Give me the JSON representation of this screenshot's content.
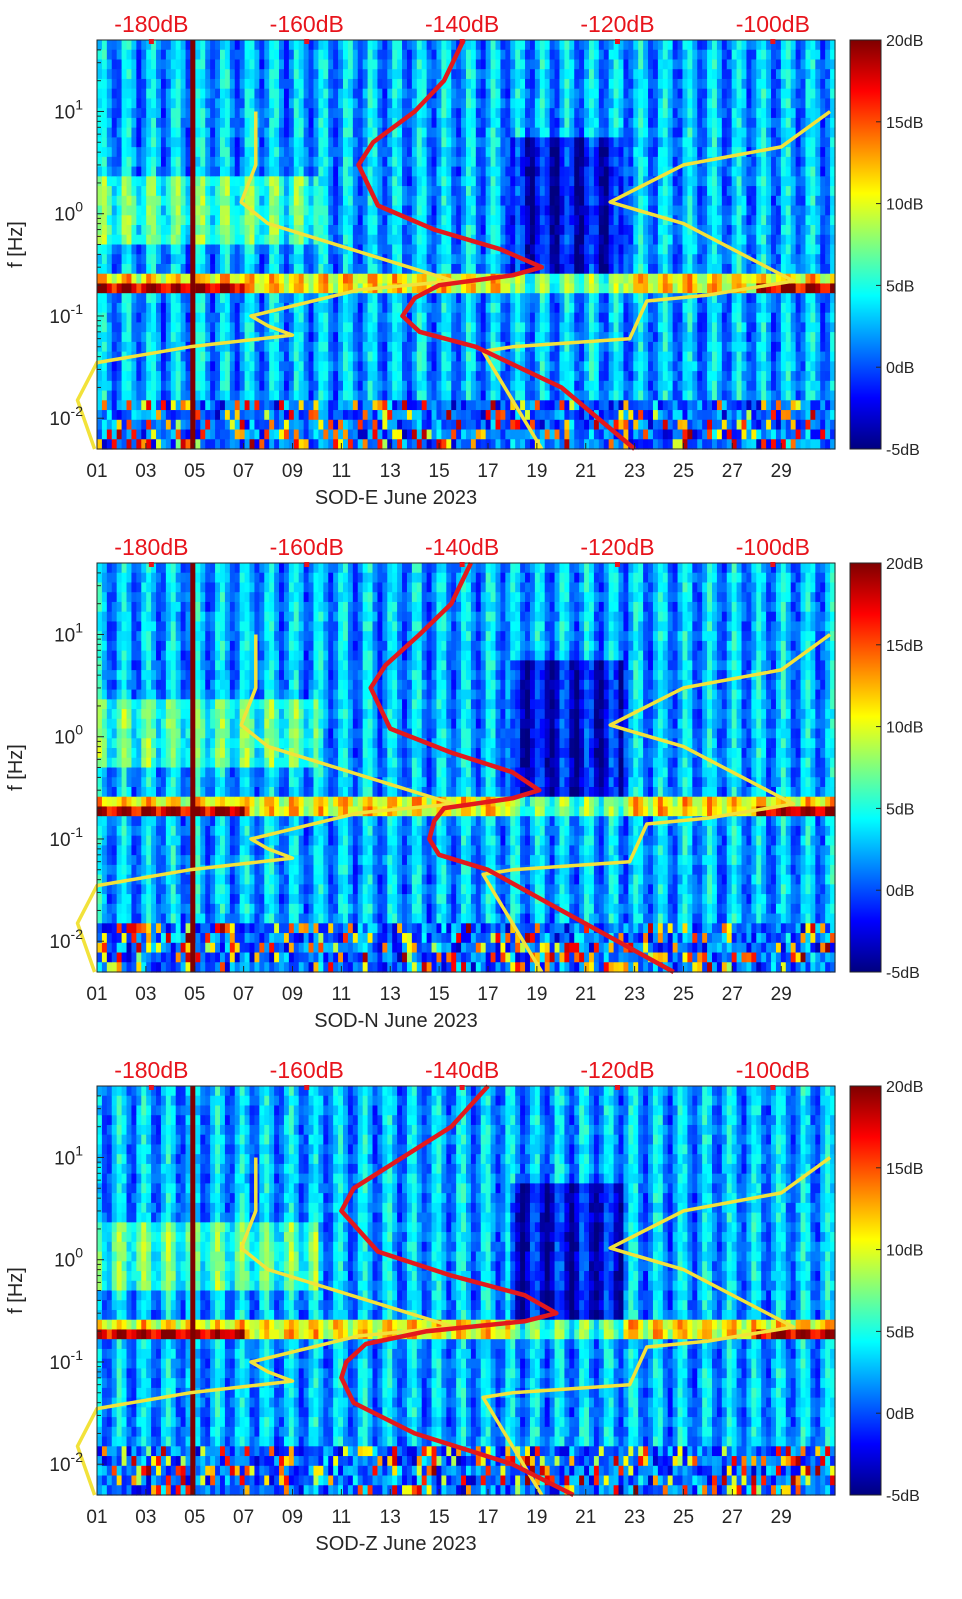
{
  "colors": {
    "reference_curve": "#f2e23a",
    "psd_curve": "#e3191c",
    "top_labels": "#e8141c",
    "colormap": [
      "#00007f",
      "#0000ff",
      "#007fff",
      "#00ffff",
      "#7fff7f",
      "#ffff00",
      "#ff7f00",
      "#ff0000",
      "#7f0000"
    ]
  },
  "chart_data": [
    {
      "type": "heatmap",
      "title": "SOD-E June 2023",
      "xlabel": "SOD-E June 2023",
      "ylabel": "f [Hz]",
      "x_ticks": [
        "01",
        "03",
        "05",
        "07",
        "09",
        "11",
        "13",
        "15",
        "17",
        "19",
        "21",
        "23",
        "25",
        "27",
        "29"
      ],
      "y_ticks": [
        {
          "value": 0.01,
          "base": "10",
          "exp": "-2"
        },
        {
          "value": 0.1,
          "base": "10",
          "exp": "-1"
        },
        {
          "value": 1,
          "base": "10",
          "exp": "0"
        },
        {
          "value": 10,
          "base": "10",
          "exp": "1"
        }
      ],
      "ylim": [
        0.005,
        50
      ],
      "top_axis_ticks": [
        "-180dB",
        "-160dB",
        "-140dB",
        "-120dB",
        "-100dB"
      ],
      "top_axis_range": [
        -187,
        -92
      ],
      "colorbar": {
        "ticks": [
          "20dB",
          "15dB",
          "10dB",
          "5dB",
          "0dB",
          "-5dB"
        ],
        "range": [
          -5,
          20
        ]
      },
      "series": [
        {
          "name": "reference_yellow",
          "points": [
            [
              7.5,
              10
            ],
            [
              7.5,
              3
            ],
            [
              6.9,
              1.3
            ],
            [
              8,
              0.8
            ],
            [
              15.6,
              0.22
            ],
            [
              11.7,
              0.18
            ],
            [
              7.3,
              0.1
            ],
            [
              8,
              0.08
            ],
            [
              9,
              0.065
            ],
            [
              4.8,
              0.05
            ],
            [
              1,
              0.035
            ],
            [
              0.2,
              0.015
            ],
            [
              0.9,
              0.005
            ]
          ]
        },
        {
          "name": "reference_yellow_right",
          "points": [
            [
              31,
              10
            ],
            [
              29,
              4.5
            ],
            [
              25,
              3
            ],
            [
              22,
              1.3
            ],
            [
              25,
              0.8
            ],
            [
              29.5,
              0.22
            ],
            [
              26,
              0.16
            ],
            [
              23.5,
              0.14
            ],
            [
              22.8,
              0.06
            ],
            [
              18,
              0.05
            ],
            [
              16.8,
              0.045
            ],
            [
              19.2,
              0.005
            ]
          ]
        },
        {
          "name": "psd_red",
          "points": [
            [
              16,
              50
            ],
            [
              15.2,
              20
            ],
            [
              14,
              10
            ],
            [
              12.3,
              5
            ],
            [
              11.7,
              3
            ],
            [
              12.5,
              1.2
            ],
            [
              14.8,
              0.7
            ],
            [
              17.5,
              0.45
            ],
            [
              19.2,
              0.3
            ],
            [
              18,
              0.25
            ],
            [
              15,
              0.2
            ],
            [
              14,
              0.15
            ],
            [
              13.5,
              0.1
            ],
            [
              14.2,
              0.07
            ],
            [
              16.5,
              0.05
            ],
            [
              20,
              0.02
            ],
            [
              23,
              0.005
            ]
          ]
        }
      ]
    },
    {
      "type": "heatmap",
      "title": "SOD-N June 2023",
      "xlabel": "SOD-N June 2023",
      "ylabel": "f [Hz]",
      "x_ticks": [
        "01",
        "03",
        "05",
        "07",
        "09",
        "11",
        "13",
        "15",
        "17",
        "19",
        "21",
        "23",
        "25",
        "27",
        "29"
      ],
      "y_ticks": [
        {
          "value": 0.01,
          "base": "10",
          "exp": "-2"
        },
        {
          "value": 0.1,
          "base": "10",
          "exp": "-1"
        },
        {
          "value": 1,
          "base": "10",
          "exp": "0"
        },
        {
          "value": 10,
          "base": "10",
          "exp": "1"
        }
      ],
      "ylim": [
        0.005,
        50
      ],
      "top_axis_ticks": [
        "-180dB",
        "-160dB",
        "-140dB",
        "-120dB",
        "-100dB"
      ],
      "top_axis_range": [
        -187,
        -92
      ],
      "colorbar": {
        "ticks": [
          "20dB",
          "15dB",
          "10dB",
          "5dB",
          "0dB",
          "-5dB"
        ],
        "range": [
          -5,
          20
        ]
      },
      "series": [
        {
          "name": "reference_yellow",
          "points": [
            [
              7.5,
              10
            ],
            [
              7.5,
              3
            ],
            [
              6.9,
              1.3
            ],
            [
              8,
              0.8
            ],
            [
              15.6,
              0.22
            ],
            [
              11.7,
              0.18
            ],
            [
              7.3,
              0.1
            ],
            [
              8,
              0.08
            ],
            [
              9,
              0.065
            ],
            [
              4.8,
              0.05
            ],
            [
              1,
              0.035
            ],
            [
              0.2,
              0.015
            ],
            [
              0.9,
              0.005
            ]
          ]
        },
        {
          "name": "reference_yellow_right",
          "points": [
            [
              31,
              10
            ],
            [
              29,
              4.5
            ],
            [
              25,
              3
            ],
            [
              22,
              1.3
            ],
            [
              25,
              0.8
            ],
            [
              29.5,
              0.22
            ],
            [
              26,
              0.16
            ],
            [
              23.5,
              0.14
            ],
            [
              22.8,
              0.06
            ],
            [
              18,
              0.05
            ],
            [
              16.8,
              0.045
            ],
            [
              19.2,
              0.005
            ]
          ]
        },
        {
          "name": "psd_red",
          "points": [
            [
              16.3,
              50
            ],
            [
              15.5,
              20
            ],
            [
              14.2,
              10
            ],
            [
              12.8,
              5
            ],
            [
              12.2,
              3
            ],
            [
              13,
              1.2
            ],
            [
              15.5,
              0.7
            ],
            [
              18,
              0.45
            ],
            [
              19.1,
              0.3
            ],
            [
              18,
              0.25
            ],
            [
              15.2,
              0.2
            ],
            [
              14.8,
              0.15
            ],
            [
              14.6,
              0.1
            ],
            [
              15,
              0.07
            ],
            [
              17,
              0.05
            ],
            [
              20,
              0.02
            ],
            [
              24.6,
              0.005
            ]
          ]
        }
      ]
    },
    {
      "type": "heatmap",
      "title": "SOD-Z June 2023",
      "xlabel": "SOD-Z June 2023",
      "ylabel": "f [Hz]",
      "x_ticks": [
        "01",
        "03",
        "05",
        "07",
        "09",
        "11",
        "13",
        "15",
        "17",
        "19",
        "21",
        "23",
        "25",
        "27",
        "29"
      ],
      "y_ticks": [
        {
          "value": 0.01,
          "base": "10",
          "exp": "-2"
        },
        {
          "value": 0.1,
          "base": "10",
          "exp": "-1"
        },
        {
          "value": 1,
          "base": "10",
          "exp": "0"
        },
        {
          "value": 10,
          "base": "10",
          "exp": "1"
        }
      ],
      "ylim": [
        0.005,
        50
      ],
      "top_axis_ticks": [
        "-180dB",
        "-160dB",
        "-140dB",
        "-120dB",
        "-100dB"
      ],
      "top_axis_range": [
        -187,
        -92
      ],
      "colorbar": {
        "ticks": [
          "20dB",
          "15dB",
          "10dB",
          "5dB",
          "0dB",
          "-5dB"
        ],
        "range": [
          -5,
          20
        ]
      },
      "series": [
        {
          "name": "reference_yellow",
          "points": [
            [
              7.5,
              10
            ],
            [
              7.5,
              3
            ],
            [
              6.9,
              1.3
            ],
            [
              8,
              0.8
            ],
            [
              15.6,
              0.22
            ],
            [
              11.7,
              0.18
            ],
            [
              7.3,
              0.1
            ],
            [
              8,
              0.08
            ],
            [
              9,
              0.065
            ],
            [
              4.8,
              0.05
            ],
            [
              1,
              0.035
            ],
            [
              0.2,
              0.015
            ],
            [
              0.9,
              0.005
            ]
          ]
        },
        {
          "name": "reference_yellow_right",
          "points": [
            [
              31,
              10
            ],
            [
              29,
              4.5
            ],
            [
              25,
              3
            ],
            [
              22,
              1.3
            ],
            [
              25,
              0.8
            ],
            [
              29.5,
              0.22
            ],
            [
              26,
              0.16
            ],
            [
              23.5,
              0.14
            ],
            [
              22.8,
              0.06
            ],
            [
              18,
              0.05
            ],
            [
              16.8,
              0.045
            ],
            [
              19.2,
              0.005
            ]
          ]
        },
        {
          "name": "psd_red",
          "points": [
            [
              17,
              50
            ],
            [
              15.5,
              20
            ],
            [
              13.5,
              10
            ],
            [
              11.5,
              5
            ],
            [
              11,
              3
            ],
            [
              12.5,
              1.2
            ],
            [
              15.5,
              0.7
            ],
            [
              18.5,
              0.45
            ],
            [
              19.8,
              0.3
            ],
            [
              18.5,
              0.25
            ],
            [
              14.5,
              0.2
            ],
            [
              12,
              0.15
            ],
            [
              11.2,
              0.1
            ],
            [
              11,
              0.07
            ],
            [
              11.5,
              0.04
            ],
            [
              14,
              0.02
            ],
            [
              18,
              0.01
            ],
            [
              20.5,
              0.005
            ]
          ]
        }
      ]
    }
  ]
}
